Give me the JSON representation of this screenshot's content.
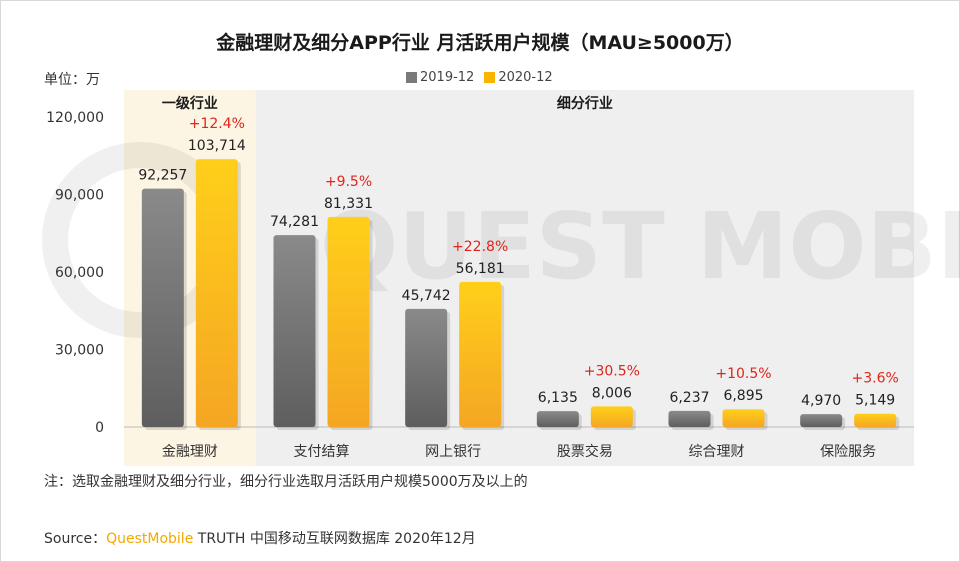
{
  "title": "金融理财及细分APP行业 月活跃用户规模（MAU≥5000万）",
  "unit_label": "单位：万",
  "watermark": "QUEST MOBILE",
  "note": "注：选取金融理财及细分行业，细分行业选取月活跃用户规模5000万及以上的",
  "source": {
    "prefix": "Source：",
    "brand": "QuestMobile",
    "rest": "TRUTH 中国移动互联网数据库 2020年12月"
  },
  "colors": {
    "s2019": "#7a7a7a",
    "s2020": "#f7b500",
    "primary_bg": "#fdf5e3",
    "sub_bg": "#efefef",
    "pct": "#e0251b"
  },
  "chart_data": {
    "type": "bar",
    "title": "金融理财及细分APP行业 月活跃用户规模（MAU≥5000万）",
    "ylabel": "单位：万",
    "ylim": [
      0,
      120000
    ],
    "yticks": [
      0,
      30000,
      60000,
      90000,
      120000
    ],
    "ytick_labels": [
      "0",
      "30,000",
      "60,000",
      "90,000",
      "120,000"
    ],
    "categories": [
      "金融理财",
      "支付结算",
      "网上银行",
      "股票交易",
      "综合理财",
      "保险服务"
    ],
    "groups": [
      {
        "label": "一级行业",
        "categories": [
          "金融理财"
        ]
      },
      {
        "label": "细分行业",
        "categories": [
          "支付结算",
          "网上银行",
          "股票交易",
          "综合理财",
          "保险服务"
        ]
      }
    ],
    "series": [
      {
        "name": "2019-12",
        "values": [
          92257,
          74281,
          45742,
          6135,
          6237,
          4970
        ],
        "labels": [
          "92,257",
          "74,281",
          "45,742",
          "6,135",
          "6,237",
          "4,970"
        ]
      },
      {
        "name": "2020-12",
        "values": [
          103714,
          81331,
          56181,
          8006,
          6895,
          5149
        ],
        "labels": [
          "103,714",
          "81,331",
          "56,181",
          "8,006",
          "6,895",
          "5,149"
        ]
      }
    ],
    "growth": [
      "+12.4%",
      "+9.5%",
      "+22.8%",
      "+30.5%",
      "+10.5%",
      "+3.6%"
    ],
    "legend_position": "top-center"
  }
}
